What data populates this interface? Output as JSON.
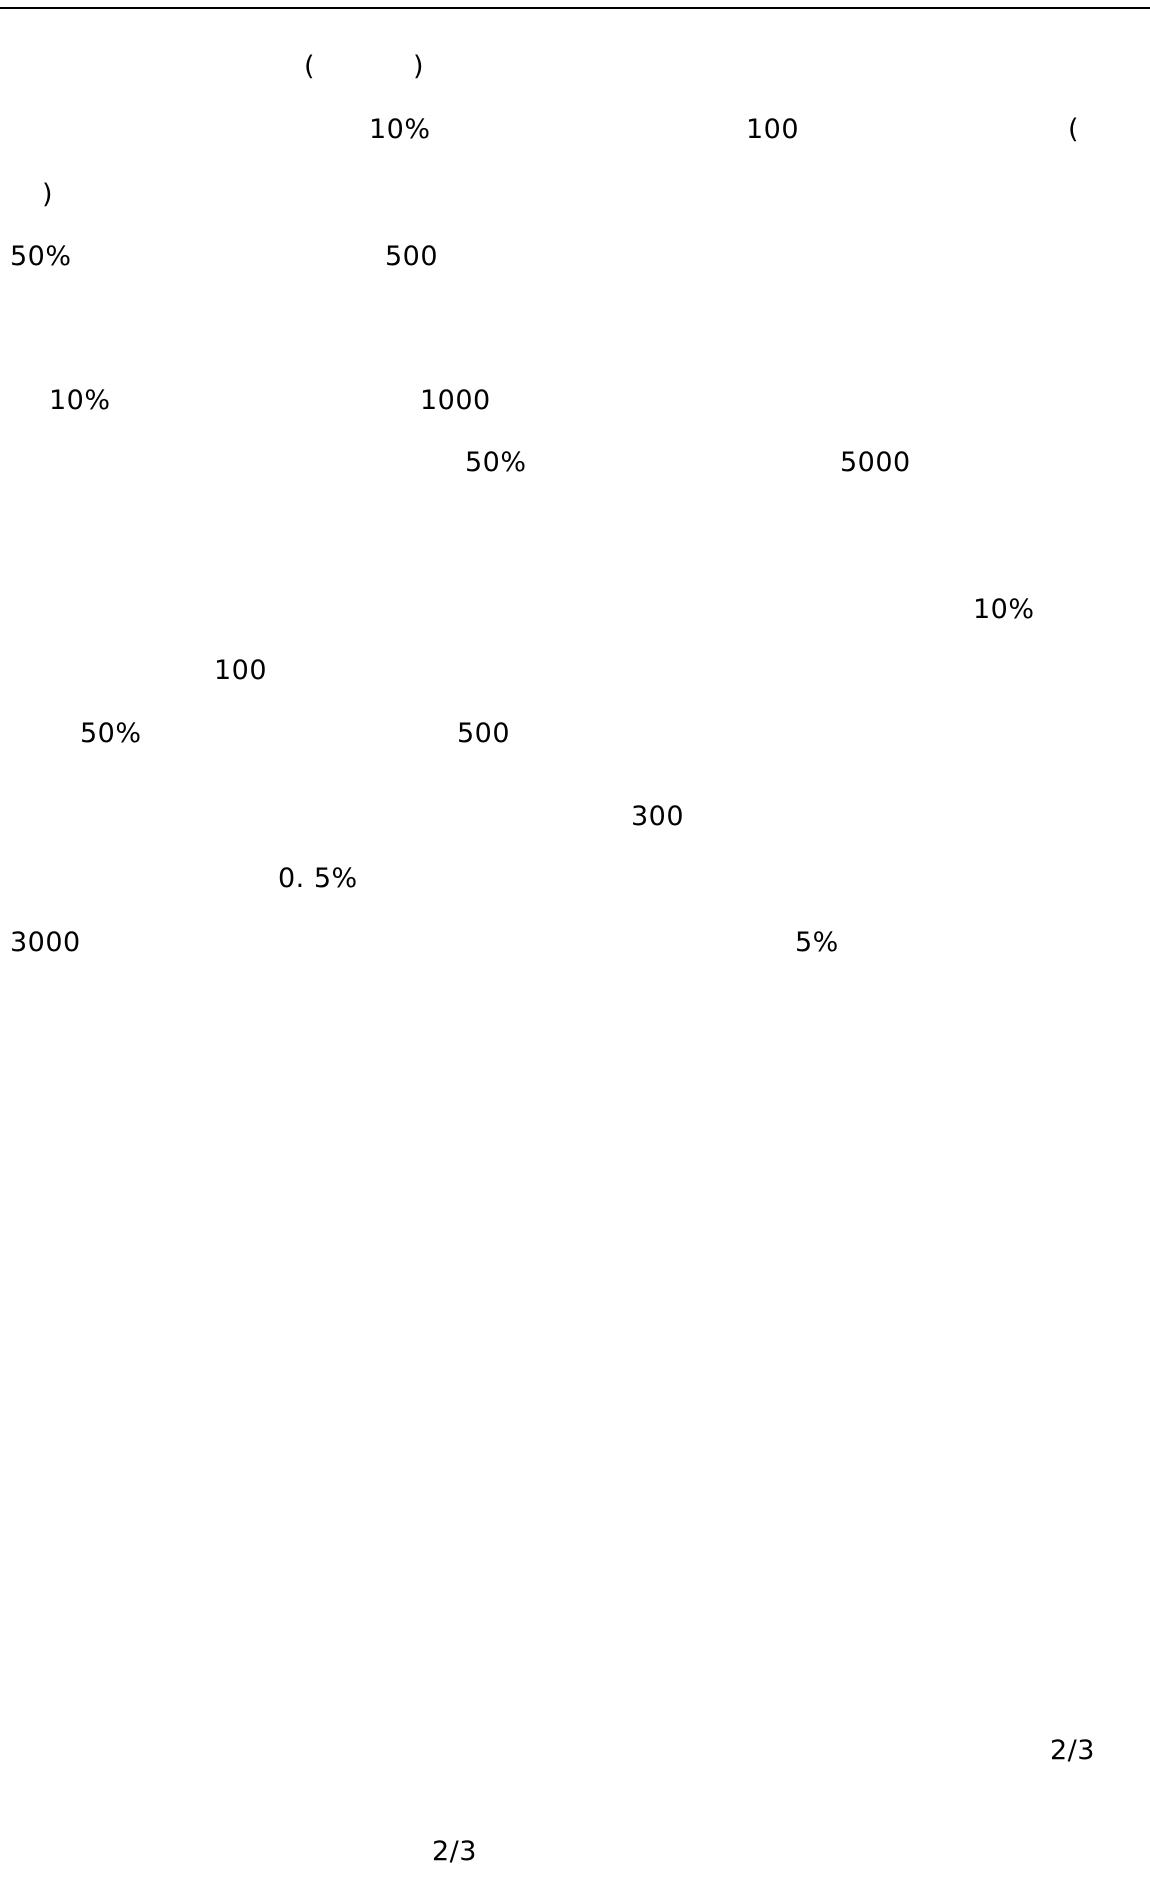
{
  "page": {
    "fragments": {
      "paren_open_title": "(",
      "paren_close_title": ")",
      "pct_10_a": "10%",
      "num_100_a": "100",
      "paren_open_a": "(",
      "paren_close_a": ")",
      "pct_50_a": "50%",
      "num_500_a": "500",
      "pct_10_b": "10%",
      "num_1000": "1000",
      "pct_50_b": "50%",
      "num_5000": "5000",
      "pct_10_c": "10%",
      "num_100_b": "100",
      "pct_50_c": "50%",
      "num_500_b": "500",
      "num_300": "300",
      "pct_0_5": "0. 5%",
      "num_3000": "3000",
      "pct_5": "5%"
    },
    "footer": {
      "page_ratio_right": "2/3",
      "page_number": "2/3"
    }
  }
}
